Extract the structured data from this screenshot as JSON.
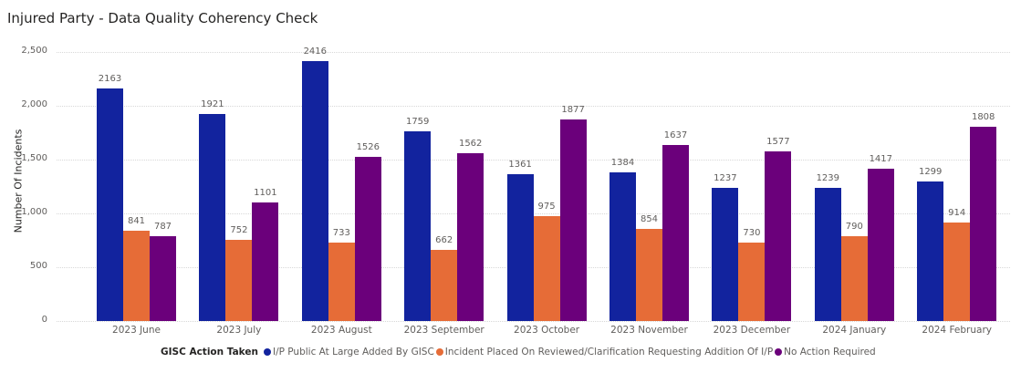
{
  "header": {
    "title": "Injured Party - Data Quality Coherency Check"
  },
  "colors": {
    "series1": "#12239e",
    "series2": "#e66c37",
    "series3": "#6b007b"
  },
  "chart_data": {
    "type": "bar",
    "title": "Injured Party - Data Quality Coherency Check",
    "xlabel": "",
    "ylabel": "Number Of Incidents",
    "ylim": [
      0,
      2500
    ],
    "yticks": [
      "0",
      "500",
      "1,000",
      "1,500",
      "2,000",
      "2,500"
    ],
    "grid": true,
    "legend_position": "bottom",
    "legend_title": "GISC Action Taken",
    "categories": [
      "2023 June",
      "2023 July",
      "2023 August",
      "2023 September",
      "2023 October",
      "2023 November",
      "2023 December",
      "2024 January",
      "2024 February"
    ],
    "series": [
      {
        "name": "I/P Public At Large Added By GISC",
        "color": "#12239e",
        "values": [
          2163,
          1921,
          2416,
          1759,
          1361,
          1384,
          1237,
          1239,
          1299
        ]
      },
      {
        "name": "Incident Placed On Reviewed/Clarification Requesting Addition Of I/P",
        "color": "#e66c37",
        "values": [
          841,
          752,
          733,
          662,
          975,
          854,
          730,
          790,
          914
        ]
      },
      {
        "name": "No Action Required",
        "color": "#6b007b",
        "values": [
          787,
          1101,
          1526,
          1562,
          1877,
          1637,
          1577,
          1417,
          1808
        ]
      }
    ]
  }
}
